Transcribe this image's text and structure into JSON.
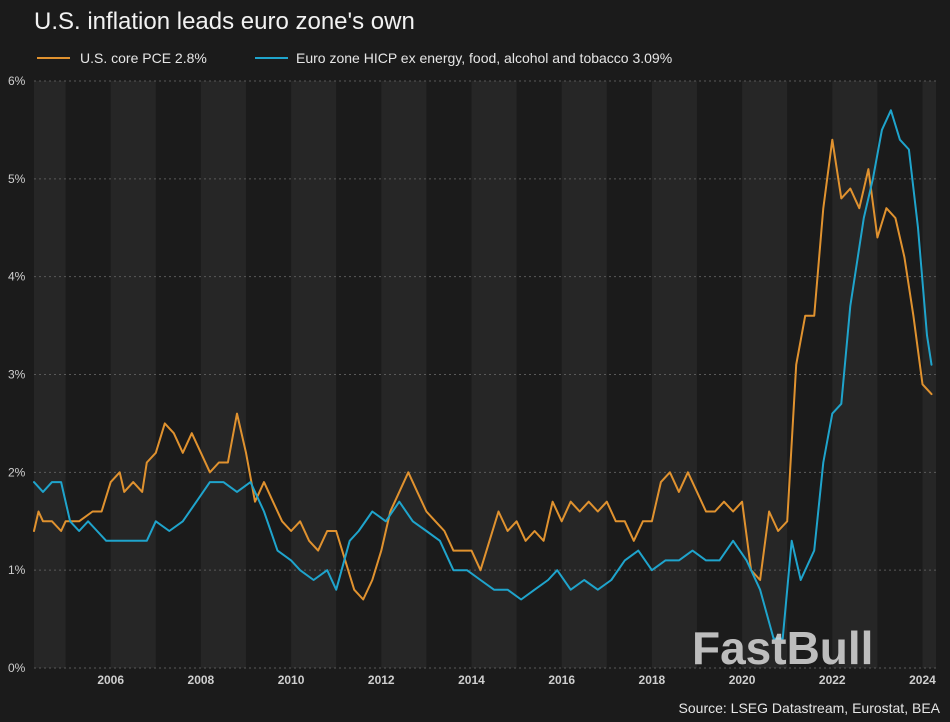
{
  "chart_data": {
    "type": "line",
    "title": "U.S. inflation leads euro zone's own",
    "xlabel": "",
    "ylabel": "",
    "ylim": [
      0,
      6
    ],
    "xlim": [
      2004.3,
      2024.3
    ],
    "y_ticks": [
      "0%",
      "1%",
      "2%",
      "3%",
      "4%",
      "5%",
      "6%"
    ],
    "x_ticks": [
      "2006",
      "2008",
      "2010",
      "2012",
      "2014",
      "2016",
      "2018",
      "2020",
      "2022",
      "2024"
    ],
    "grid": true,
    "legend_position": "top-left",
    "series": [
      {
        "name": "U.S. core PCE 2.8%",
        "color": "#e0922f",
        "points": [
          [
            2004.3,
            1.4
          ],
          [
            2004.4,
            1.6
          ],
          [
            2004.5,
            1.5
          ],
          [
            2004.7,
            1.5
          ],
          [
            2004.9,
            1.4
          ],
          [
            2005.0,
            1.5
          ],
          [
            2005.3,
            1.5
          ],
          [
            2005.6,
            1.6
          ],
          [
            2005.8,
            1.6
          ],
          [
            2006.0,
            1.9
          ],
          [
            2006.2,
            2.0
          ],
          [
            2006.3,
            1.8
          ],
          [
            2006.5,
            1.9
          ],
          [
            2006.7,
            1.8
          ],
          [
            2006.8,
            2.1
          ],
          [
            2007.0,
            2.2
          ],
          [
            2007.2,
            2.5
          ],
          [
            2007.4,
            2.4
          ],
          [
            2007.6,
            2.2
          ],
          [
            2007.8,
            2.4
          ],
          [
            2008.0,
            2.2
          ],
          [
            2008.2,
            2.0
          ],
          [
            2008.4,
            2.1
          ],
          [
            2008.6,
            2.1
          ],
          [
            2008.8,
            2.6
          ],
          [
            2009.0,
            2.2
          ],
          [
            2009.2,
            1.7
          ],
          [
            2009.4,
            1.9
          ],
          [
            2009.6,
            1.7
          ],
          [
            2009.8,
            1.5
          ],
          [
            2010.0,
            1.4
          ],
          [
            2010.2,
            1.5
          ],
          [
            2010.4,
            1.3
          ],
          [
            2010.6,
            1.2
          ],
          [
            2010.8,
            1.4
          ],
          [
            2011.0,
            1.4
          ],
          [
            2011.2,
            1.1
          ],
          [
            2011.4,
            0.8
          ],
          [
            2011.6,
            0.7
          ],
          [
            2011.8,
            0.9
          ],
          [
            2012.0,
            1.2
          ],
          [
            2012.2,
            1.6
          ],
          [
            2012.4,
            1.8
          ],
          [
            2012.6,
            2.0
          ],
          [
            2012.8,
            1.8
          ],
          [
            2013.0,
            1.6
          ],
          [
            2013.2,
            1.5
          ],
          [
            2013.4,
            1.4
          ],
          [
            2013.6,
            1.2
          ],
          [
            2013.8,
            1.2
          ],
          [
            2014.0,
            1.2
          ],
          [
            2014.2,
            1.0
          ],
          [
            2014.4,
            1.3
          ],
          [
            2014.6,
            1.6
          ],
          [
            2014.8,
            1.4
          ],
          [
            2015.0,
            1.5
          ],
          [
            2015.2,
            1.3
          ],
          [
            2015.4,
            1.4
          ],
          [
            2015.6,
            1.3
          ],
          [
            2015.8,
            1.7
          ],
          [
            2016.0,
            1.5
          ],
          [
            2016.2,
            1.7
          ],
          [
            2016.4,
            1.6
          ],
          [
            2016.6,
            1.7
          ],
          [
            2016.8,
            1.6
          ],
          [
            2017.0,
            1.7
          ],
          [
            2017.2,
            1.5
          ],
          [
            2017.4,
            1.5
          ],
          [
            2017.6,
            1.3
          ],
          [
            2017.8,
            1.5
          ],
          [
            2018.0,
            1.5
          ],
          [
            2018.2,
            1.9
          ],
          [
            2018.4,
            2.0
          ],
          [
            2018.6,
            1.8
          ],
          [
            2018.8,
            2.0
          ],
          [
            2019.0,
            1.8
          ],
          [
            2019.2,
            1.6
          ],
          [
            2019.4,
            1.6
          ],
          [
            2019.6,
            1.7
          ],
          [
            2019.8,
            1.6
          ],
          [
            2020.0,
            1.7
          ],
          [
            2020.2,
            1.0
          ],
          [
            2020.4,
            0.9
          ],
          [
            2020.6,
            1.6
          ],
          [
            2020.8,
            1.4
          ],
          [
            2021.0,
            1.5
          ],
          [
            2021.2,
            3.1
          ],
          [
            2021.4,
            3.6
          ],
          [
            2021.6,
            3.6
          ],
          [
            2021.8,
            4.7
          ],
          [
            2022.0,
            5.4
          ],
          [
            2022.2,
            4.8
          ],
          [
            2022.4,
            4.9
          ],
          [
            2022.6,
            4.7
          ],
          [
            2022.8,
            5.1
          ],
          [
            2023.0,
            4.4
          ],
          [
            2023.2,
            4.7
          ],
          [
            2023.4,
            4.6
          ],
          [
            2023.6,
            4.2
          ],
          [
            2023.8,
            3.6
          ],
          [
            2024.0,
            2.9
          ],
          [
            2024.2,
            2.8
          ]
        ]
      },
      {
        "name": "Euro zone HICP ex energy, food, alcohol and tobacco 3.09%",
        "color": "#1fa4cc",
        "points": [
          [
            2004.3,
            1.9
          ],
          [
            2004.5,
            1.8
          ],
          [
            2004.7,
            1.9
          ],
          [
            2004.9,
            1.9
          ],
          [
            2005.1,
            1.5
          ],
          [
            2005.3,
            1.4
          ],
          [
            2005.5,
            1.5
          ],
          [
            2005.7,
            1.4
          ],
          [
            2005.9,
            1.3
          ],
          [
            2006.2,
            1.3
          ],
          [
            2006.5,
            1.3
          ],
          [
            2006.8,
            1.3
          ],
          [
            2007.0,
            1.5
          ],
          [
            2007.3,
            1.4
          ],
          [
            2007.6,
            1.5
          ],
          [
            2007.9,
            1.7
          ],
          [
            2008.2,
            1.9
          ],
          [
            2008.5,
            1.9
          ],
          [
            2008.8,
            1.8
          ],
          [
            2009.1,
            1.9
          ],
          [
            2009.4,
            1.6
          ],
          [
            2009.7,
            1.2
          ],
          [
            2010.0,
            1.1
          ],
          [
            2010.2,
            1.0
          ],
          [
            2010.5,
            0.9
          ],
          [
            2010.8,
            1.0
          ],
          [
            2011.0,
            0.8
          ],
          [
            2011.3,
            1.3
          ],
          [
            2011.5,
            1.4
          ],
          [
            2011.8,
            1.6
          ],
          [
            2012.1,
            1.5
          ],
          [
            2012.4,
            1.7
          ],
          [
            2012.7,
            1.5
          ],
          [
            2013.0,
            1.4
          ],
          [
            2013.3,
            1.3
          ],
          [
            2013.6,
            1.0
          ],
          [
            2013.9,
            1.0
          ],
          [
            2014.2,
            0.9
          ],
          [
            2014.5,
            0.8
          ],
          [
            2014.8,
            0.8
          ],
          [
            2015.1,
            0.7
          ],
          [
            2015.4,
            0.8
          ],
          [
            2015.7,
            0.9
          ],
          [
            2015.9,
            1.0
          ],
          [
            2016.2,
            0.8
          ],
          [
            2016.5,
            0.9
          ],
          [
            2016.8,
            0.8
          ],
          [
            2017.1,
            0.9
          ],
          [
            2017.4,
            1.1
          ],
          [
            2017.7,
            1.2
          ],
          [
            2018.0,
            1.0
          ],
          [
            2018.3,
            1.1
          ],
          [
            2018.6,
            1.1
          ],
          [
            2018.9,
            1.2
          ],
          [
            2019.2,
            1.1
          ],
          [
            2019.5,
            1.1
          ],
          [
            2019.8,
            1.3
          ],
          [
            2020.1,
            1.1
          ],
          [
            2020.4,
            0.8
          ],
          [
            2020.7,
            0.3
          ],
          [
            2020.9,
            0.3
          ],
          [
            2021.1,
            1.3
          ],
          [
            2021.3,
            0.9
          ],
          [
            2021.6,
            1.2
          ],
          [
            2021.8,
            2.1
          ],
          [
            2022.0,
            2.6
          ],
          [
            2022.2,
            2.7
          ],
          [
            2022.4,
            3.7
          ],
          [
            2022.7,
            4.6
          ],
          [
            2022.9,
            5.0
          ],
          [
            2023.1,
            5.5
          ],
          [
            2023.3,
            5.7
          ],
          [
            2023.5,
            5.4
          ],
          [
            2023.7,
            5.3
          ],
          [
            2023.9,
            4.5
          ],
          [
            2024.1,
            3.4
          ],
          [
            2024.2,
            3.1
          ]
        ]
      }
    ],
    "source": "Source: LSEG Datastream, Eurostat, BEA",
    "watermark": "FastBull"
  }
}
